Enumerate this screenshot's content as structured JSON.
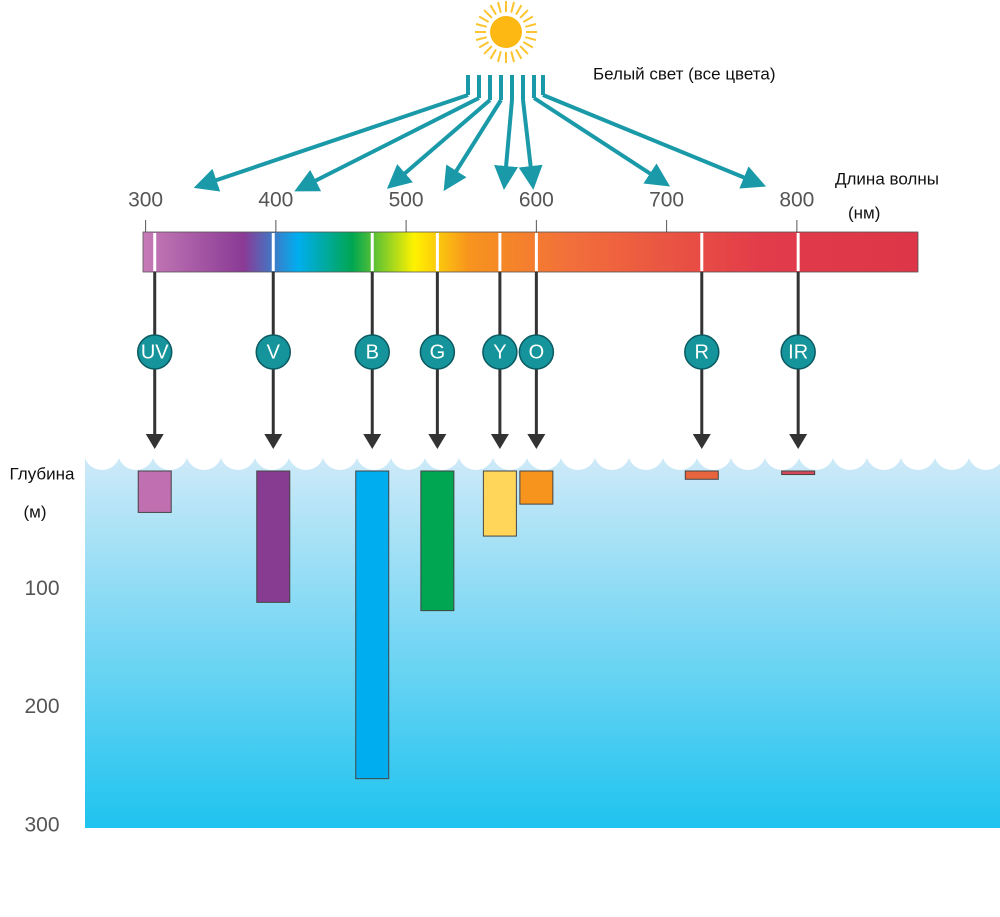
{
  "chart_data": {
    "type": "bar",
    "annotation": "Белый свет (все цвета)",
    "x_label": "Длина волны",
    "x_unit": "(нм)",
    "y_label": "Глубина",
    "y_unit": "(м)",
    "xlim": [
      298,
      893
    ],
    "xticks": [
      300,
      400,
      500,
      600,
      700,
      800
    ],
    "ylim": [
      0,
      300
    ],
    "yticks": [
      100,
      200,
      300
    ],
    "categories": [
      "UV",
      "V",
      "B",
      "G",
      "Y",
      "O",
      "R",
      "IR"
    ],
    "x": [
      307,
      398,
      474,
      524,
      572,
      600,
      727,
      801
    ],
    "values": [
      35,
      111,
      260,
      118,
      55,
      28,
      7,
      3
    ],
    "colors": [
      "#c070b0",
      "#873c92",
      "#00aeef",
      "#00a651",
      "#ffd55a",
      "#f7941d",
      "#e8643c",
      "#d7475a"
    ]
  }
}
